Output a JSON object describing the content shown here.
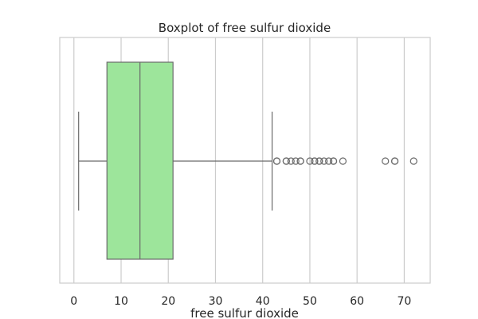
{
  "chart_data": {
    "type": "box",
    "orientation": "horizontal",
    "title": "Boxplot of free sulfur dioxide",
    "xlabel": "free sulfur dioxide",
    "ylabel": "",
    "xlim": [
      -3,
      75.5
    ],
    "xticks": [
      0,
      10,
      20,
      30,
      40,
      50,
      60,
      70
    ],
    "xtick_labels": [
      "0",
      "10",
      "20",
      "30",
      "40",
      "50",
      "60",
      "70"
    ],
    "grid": "vertical",
    "box": {
      "whisker_low": 1,
      "q1": 7,
      "median": 14,
      "q3": 21,
      "whisker_high": 42
    },
    "outliers": [
      43,
      43,
      45,
      45,
      46,
      47,
      48,
      48,
      50,
      51,
      51,
      52,
      52,
      53,
      54,
      55,
      55,
      57,
      66,
      68,
      68,
      72
    ],
    "colors": {
      "box_fill": "#9de59b",
      "line": "#6a6a6a",
      "grid": "#cccccc",
      "frame": "#cccccc"
    }
  }
}
